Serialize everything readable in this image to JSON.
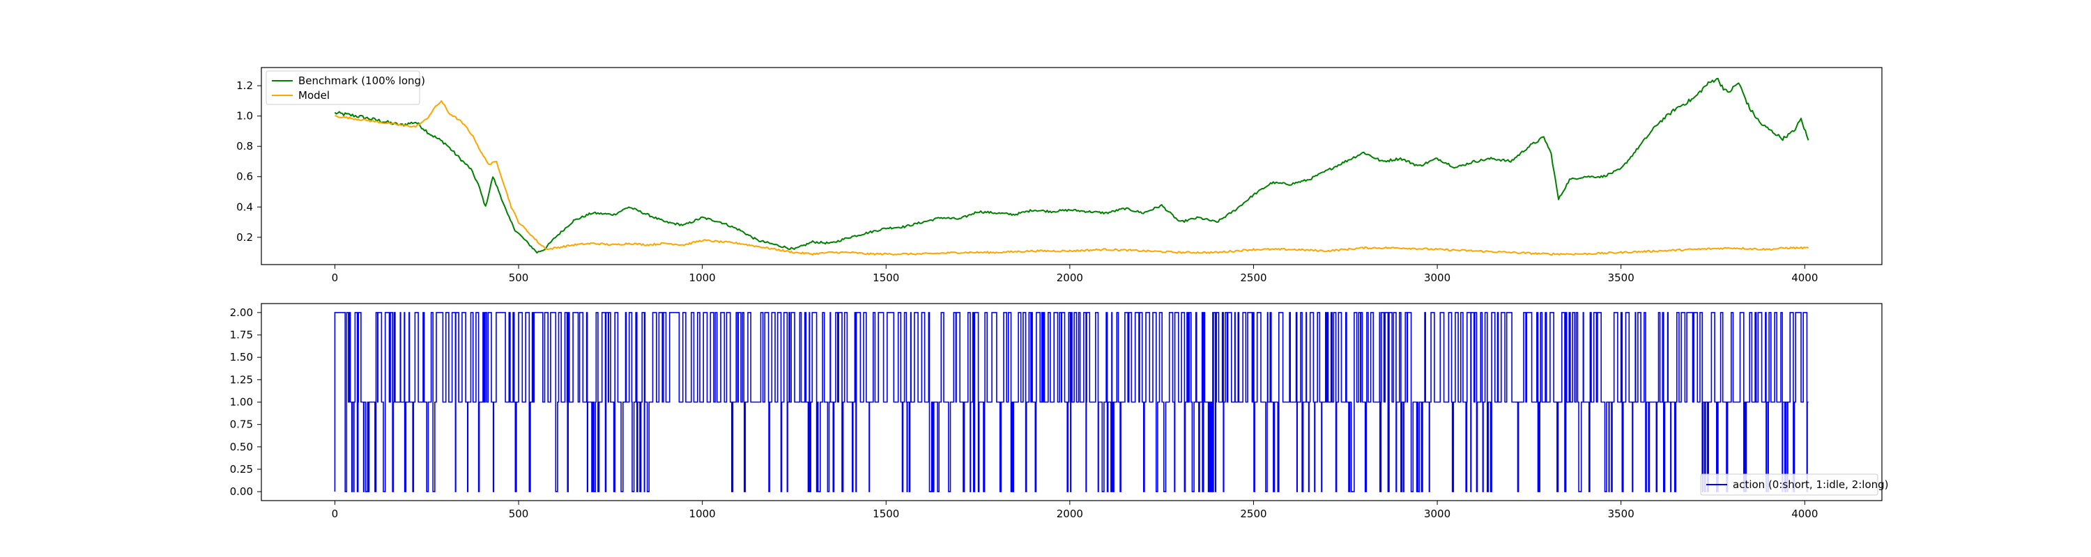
{
  "chart_data": [
    {
      "type": "line",
      "title": "",
      "xlabel": "",
      "ylabel": "",
      "xlim": [
        -200,
        4210
      ],
      "ylim": [
        0.02,
        1.32
      ],
      "xticks": [
        0,
        500,
        1000,
        1500,
        2000,
        2500,
        3000,
        3500,
        4000
      ],
      "yticks": [
        0.2,
        0.4,
        0.6,
        0.8,
        1.0,
        1.2
      ],
      "ytick_labels": [
        "0.2",
        "0.4",
        "0.6",
        "0.8",
        "1.0",
        "1.2"
      ],
      "grid": false,
      "legend": "upper-left",
      "series": [
        {
          "name": "Benchmark (100% long)",
          "color": "#008000",
          "x": [
            0,
            60,
            120,
            180,
            220,
            260,
            300,
            340,
            370,
            390,
            410,
            430,
            450,
            470,
            490,
            510,
            530,
            550,
            570,
            600,
            650,
            700,
            760,
            800,
            850,
            900,
            950,
            1000,
            1050,
            1100,
            1150,
            1200,
            1250,
            1300,
            1350,
            1400,
            1450,
            1500,
            1550,
            1600,
            1650,
            1700,
            1750,
            1800,
            1850,
            1900,
            1950,
            2000,
            2050,
            2100,
            2150,
            2200,
            2250,
            2300,
            2350,
            2400,
            2450,
            2500,
            2550,
            2600,
            2650,
            2700,
            2750,
            2800,
            2850,
            2900,
            2950,
            3000,
            3050,
            3100,
            3150,
            3200,
            3250,
            3290,
            3310,
            3330,
            3360,
            3400,
            3450,
            3500,
            3550,
            3600,
            3650,
            3700,
            3730,
            3760,
            3790,
            3820,
            3850,
            3880,
            3910,
            3940,
            3970,
            3990,
            4010
          ],
          "values": [
            1.02,
            1.0,
            0.97,
            0.94,
            0.96,
            0.88,
            0.82,
            0.72,
            0.65,
            0.55,
            0.4,
            0.6,
            0.48,
            0.35,
            0.25,
            0.2,
            0.15,
            0.1,
            0.12,
            0.2,
            0.31,
            0.36,
            0.35,
            0.4,
            0.35,
            0.3,
            0.28,
            0.33,
            0.3,
            0.25,
            0.18,
            0.15,
            0.12,
            0.17,
            0.16,
            0.2,
            0.23,
            0.26,
            0.27,
            0.3,
            0.33,
            0.32,
            0.37,
            0.36,
            0.35,
            0.38,
            0.37,
            0.38,
            0.37,
            0.36,
            0.39,
            0.36,
            0.41,
            0.3,
            0.33,
            0.3,
            0.38,
            0.48,
            0.56,
            0.55,
            0.58,
            0.64,
            0.7,
            0.76,
            0.7,
            0.72,
            0.67,
            0.72,
            0.66,
            0.7,
            0.72,
            0.7,
            0.8,
            0.86,
            0.75,
            0.45,
            0.58,
            0.6,
            0.6,
            0.65,
            0.8,
            0.95,
            1.05,
            1.12,
            1.2,
            1.25,
            1.15,
            1.22,
            1.05,
            0.95,
            0.9,
            0.85,
            0.9,
            0.98,
            0.84
          ],
          "noise": 0.012
        },
        {
          "name": "Model",
          "color": "#ffa500",
          "x": [
            0,
            60,
            120,
            180,
            220,
            250,
            270,
            290,
            310,
            340,
            360,
            380,
            400,
            420,
            440,
            460,
            480,
            500,
            520,
            540,
            560,
            580,
            600,
            650,
            700,
            760,
            800,
            850,
            900,
            950,
            1000,
            1050,
            1100,
            1150,
            1200,
            1250,
            1300,
            1350,
            1400,
            1450,
            1500,
            1600,
            1700,
            1800,
            1900,
            2000,
            2100,
            2200,
            2300,
            2400,
            2500,
            2600,
            2700,
            2800,
            2900,
            3000,
            3100,
            3200,
            3300,
            3400,
            3500,
            3600,
            3700,
            3800,
            3900,
            3950,
            4010
          ],
          "values": [
            1.0,
            0.98,
            0.96,
            0.94,
            0.93,
            0.98,
            1.05,
            1.1,
            1.02,
            0.97,
            0.92,
            0.85,
            0.75,
            0.68,
            0.7,
            0.55,
            0.4,
            0.3,
            0.25,
            0.2,
            0.15,
            0.12,
            0.13,
            0.15,
            0.16,
            0.15,
            0.16,
            0.15,
            0.16,
            0.15,
            0.18,
            0.17,
            0.16,
            0.14,
            0.12,
            0.1,
            0.09,
            0.1,
            0.1,
            0.09,
            0.09,
            0.09,
            0.1,
            0.1,
            0.11,
            0.11,
            0.12,
            0.11,
            0.1,
            0.1,
            0.12,
            0.12,
            0.11,
            0.13,
            0.13,
            0.12,
            0.11,
            0.1,
            0.09,
            0.09,
            0.1,
            0.11,
            0.12,
            0.13,
            0.12,
            0.13,
            0.13
          ],
          "noise": 0.006
        }
      ]
    },
    {
      "type": "line",
      "title": "",
      "xlabel": "",
      "ylabel": "",
      "xlim": [
        -200,
        4210
      ],
      "ylim": [
        -0.1,
        2.1
      ],
      "xticks": [
        0,
        500,
        1000,
        1500,
        2000,
        2500,
        3000,
        3500,
        4000
      ],
      "yticks": [
        0.0,
        0.25,
        0.5,
        0.75,
        1.0,
        1.25,
        1.5,
        1.75,
        2.0
      ],
      "ytick_labels": [
        "0.00",
        "0.25",
        "0.50",
        "0.75",
        "1.00",
        "1.25",
        "1.50",
        "1.75",
        "2.00"
      ],
      "grid": false,
      "legend": "lower-right",
      "series": [
        {
          "name": "action (0:short, 1:idle, 2:long)",
          "color": "#0000ff",
          "x_range": [
            0,
            4010
          ],
          "step": true,
          "levels": [
            0,
            1,
            2
          ]
        }
      ]
    }
  ]
}
